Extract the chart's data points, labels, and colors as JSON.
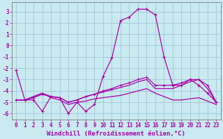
{
  "xlabel": "Windchill (Refroidissement éolien,°C)",
  "background_color": "#c8eaf0",
  "grid_color": "#a0c8d8",
  "line_color": "#aa00aa",
  "hours": [
    0,
    1,
    2,
    3,
    4,
    5,
    6,
    7,
    8,
    9,
    10,
    11,
    12,
    13,
    14,
    15,
    16,
    17,
    18,
    19,
    20,
    21,
    22,
    23
  ],
  "line1": [
    -2.2,
    -4.8,
    -4.8,
    -5.8,
    -4.5,
    -4.6,
    -6.0,
    -5.0,
    -5.8,
    -5.2,
    -2.7,
    -1.1,
    2.2,
    2.5,
    3.2,
    3.2,
    2.7,
    -1.0,
    -3.5,
    -3.5,
    -3.0,
    -3.5,
    -4.2,
    -5.0
  ],
  "line2": [
    -4.8,
    -4.8,
    -4.6,
    -4.3,
    -4.5,
    -4.6,
    -5.0,
    -4.8,
    -4.5,
    -4.3,
    -4.0,
    -3.8,
    -3.5,
    -3.3,
    -3.0,
    -2.8,
    -3.5,
    -3.5,
    -3.5,
    -3.3,
    -3.0,
    -3.0,
    -3.5,
    -5.0
  ],
  "line3": [
    -4.8,
    -4.8,
    -4.5,
    -4.2,
    -4.5,
    -4.6,
    -5.0,
    -4.8,
    -4.5,
    -4.3,
    -4.1,
    -3.9,
    -3.7,
    -3.5,
    -3.2,
    -3.0,
    -3.8,
    -3.8,
    -3.8,
    -3.5,
    -3.2,
    -3.0,
    -3.8,
    -5.0
  ],
  "line4": [
    -4.8,
    -4.8,
    -4.5,
    -4.2,
    -4.6,
    -4.8,
    -5.2,
    -5.0,
    -4.9,
    -4.7,
    -4.6,
    -4.5,
    -4.4,
    -4.2,
    -4.0,
    -3.8,
    -4.2,
    -4.5,
    -4.8,
    -4.8,
    -4.7,
    -4.6,
    -4.9,
    -5.2
  ],
  "ylim": [
    -6.5,
    3.8
  ],
  "yticks": [
    -6,
    -5,
    -4,
    -3,
    -2,
    -1,
    0,
    1,
    2,
    3
  ],
  "xticks": [
    0,
    1,
    2,
    3,
    4,
    5,
    6,
    7,
    8,
    9,
    10,
    11,
    12,
    13,
    14,
    15,
    16,
    17,
    18,
    19,
    20,
    21,
    22,
    23
  ],
  "tick_fontsize": 5.5,
  "label_fontsize": 6.5
}
